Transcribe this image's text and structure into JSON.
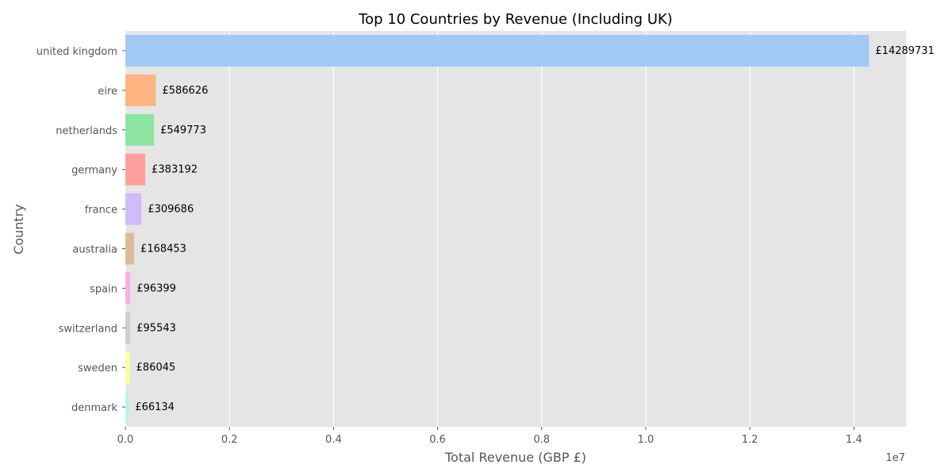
{
  "chart_data": {
    "type": "bar",
    "orientation": "horizontal",
    "title": "Top 10 Countries by Revenue (Including UK)",
    "xlabel": "Total Revenue (GBP £)",
    "ylabel": "Country",
    "x_offset_label": "1e7",
    "xlim": [
      0,
      15000000
    ],
    "x_ticks": [
      0,
      2000000,
      4000000,
      6000000,
      8000000,
      10000000,
      12000000,
      14000000
    ],
    "x_tick_labels": [
      "0.0",
      "0.2",
      "0.4",
      "0.6",
      "0.8",
      "1.0",
      "1.2",
      "1.4"
    ],
    "grid": true,
    "categories": [
      "united kingdom",
      "eire",
      "netherlands",
      "germany",
      "france",
      "australia",
      "spain",
      "switzerland",
      "sweden",
      "denmark"
    ],
    "values": [
      14289731,
      586626,
      549773,
      383192,
      309686,
      168453,
      96399,
      95543,
      86045,
      66134
    ],
    "data_labels": [
      "£14289731",
      "£586626",
      "£549773",
      "£383192",
      "£309686",
      "£168453",
      "£96399",
      "£95543",
      "£86045",
      "£66134"
    ],
    "colors": [
      "#a1c9f4",
      "#ffb482",
      "#8de5a1",
      "#ff9f9b",
      "#d0bbff",
      "#debb9b",
      "#fab0e4",
      "#cfcfcf",
      "#fffea3",
      "#b9f2f0"
    ],
    "background_color": "#e5e5e5",
    "grid_color": "#ffffff"
  }
}
